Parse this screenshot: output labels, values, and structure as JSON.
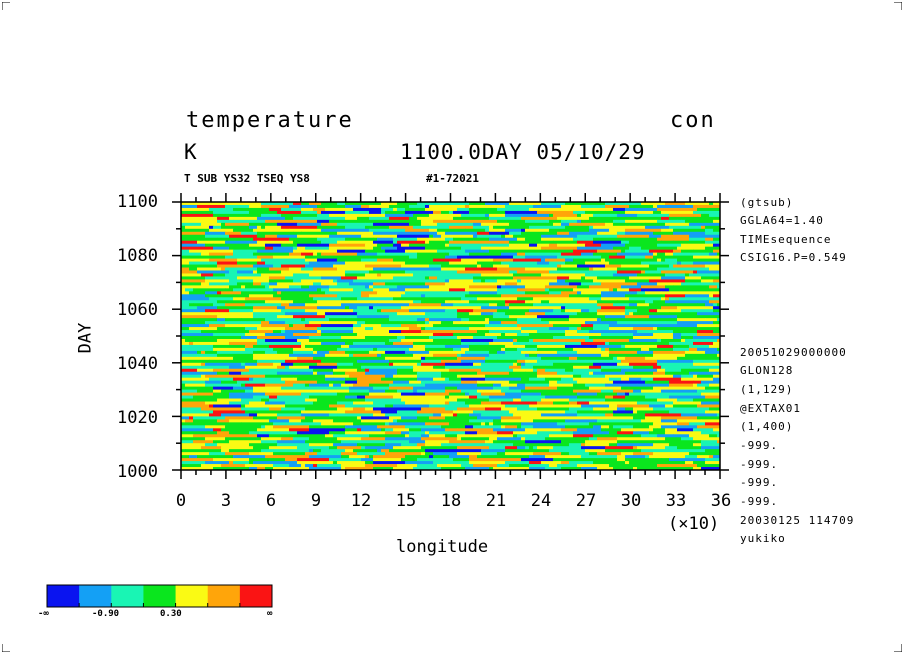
{
  "header": {
    "title": "temperature",
    "units": "K",
    "plot_type": "con",
    "time": "1100.0DAY 05/10/29",
    "sub_left": "T SUB YS32 TSEQ YS8",
    "sub_right": "#1-72021"
  },
  "side_info": {
    "top": [
      "(gtsub)",
      "GGLA64=1.40",
      "TIMEsequence",
      "CSIG16.P=0.549"
    ],
    "bottom": [
      "20051029000000",
      "GLON128",
      "(1,129)",
      "@EXTAX01",
      "(1,400)",
      "-999.",
      "-999.",
      "-999.",
      "-999.",
      "20030125 114709",
      "yukiko"
    ]
  },
  "chart_data": {
    "type": "heatmap",
    "xlabel": "longitude",
    "ylabel": "DAY",
    "x_multiplier_label": "(×10)",
    "xlim": [
      0,
      36
    ],
    "ylim": [
      1000,
      1100
    ],
    "x_ticks": [
      "0",
      "3",
      "6",
      "9",
      "12",
      "15",
      "18",
      "21",
      "24",
      "27",
      "30",
      "33",
      "36"
    ],
    "y_ticks": [
      "1000",
      "1020",
      "1040",
      "1060",
      "1080",
      "1100"
    ],
    "colorbar": {
      "colors": [
        "#0a14f0",
        "#14a0f5",
        "#19f5b4",
        "#0ae61e",
        "#fafa14",
        "#ffa50a",
        "#fa1414"
      ],
      "labels": [
        "-∞",
        "-0.90",
        "0.30",
        "∞"
      ]
    }
  }
}
